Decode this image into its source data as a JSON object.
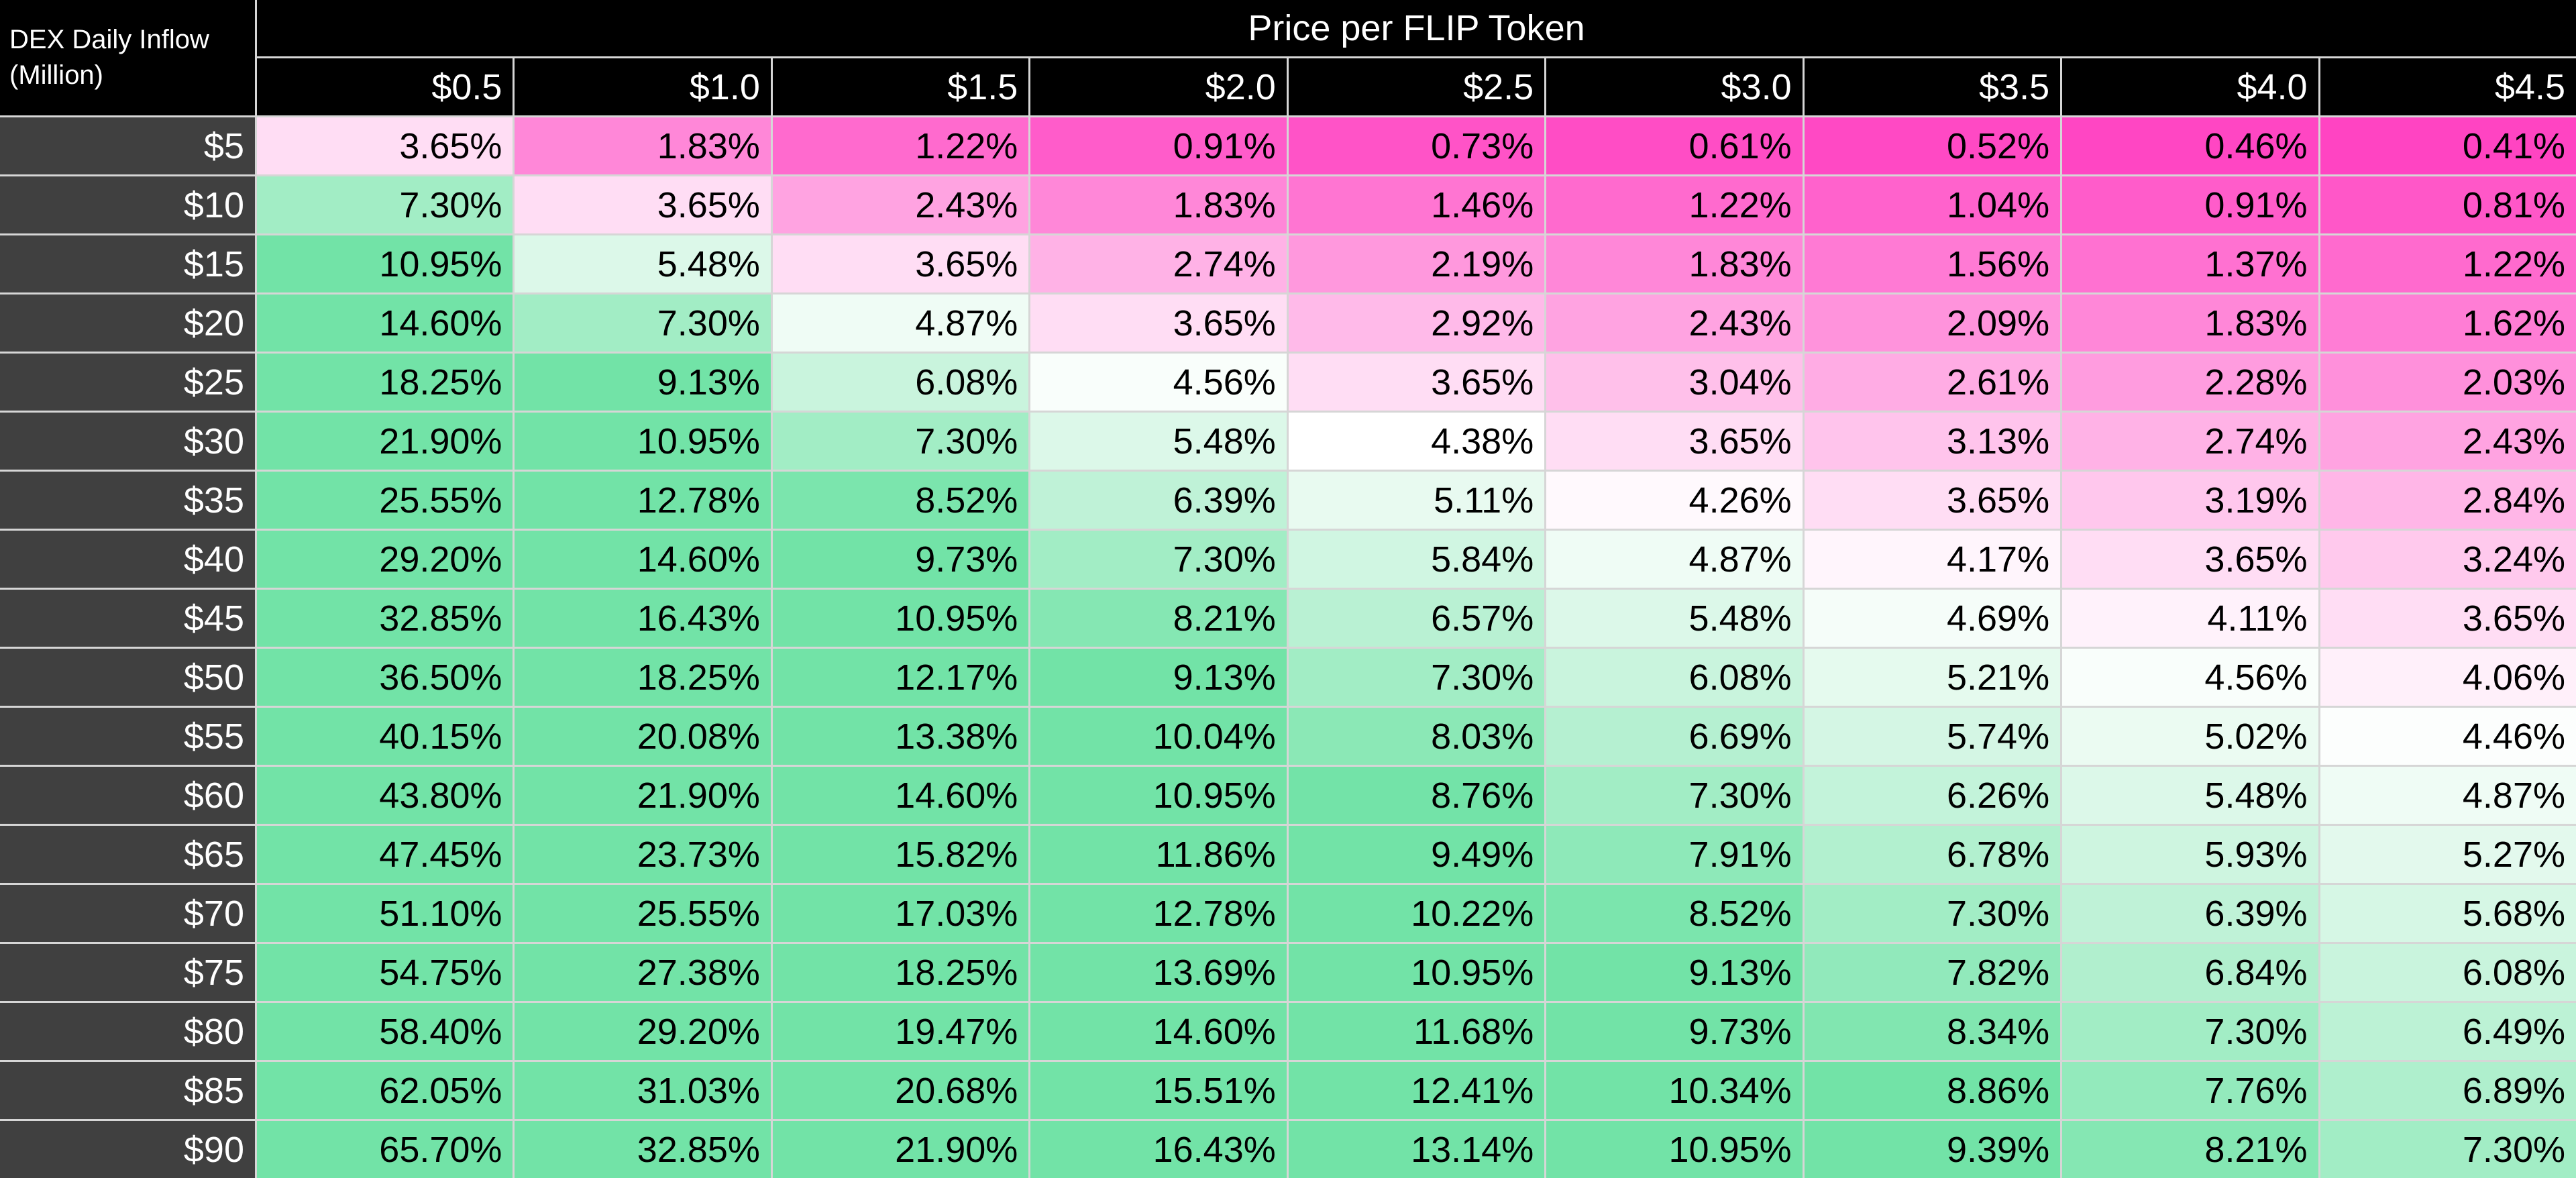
{
  "title": "Price per FLIP Token",
  "corner": {
    "line1": "DEX Daily Inflow",
    "line2": "(Million)"
  },
  "colors": {
    "min_pink": "#FF44C2",
    "mid_white": "#FFFFFF",
    "max_green": "#72E3A7",
    "grid": "#D6D6D6",
    "header_bg": "#000000",
    "row_header_bg": "#404040",
    "header_text": "#FFFFFF",
    "cell_text": "#000000"
  },
  "chart_data": {
    "type": "heatmap",
    "title": "Price per FLIP Token",
    "xlabel": "Price per FLIP Token",
    "ylabel": "DEX Daily Inflow (Million)",
    "legend_position": "none",
    "grid": true,
    "color_scale": {
      "pink_saturation_value": 0.41,
      "white_midpoint_value": 4.38,
      "green_saturation_value": 8.8
    },
    "columns": [
      "$0.5",
      "$1.0",
      "$1.5",
      "$2.0",
      "$2.5",
      "$3.0",
      "$3.5",
      "$4.0",
      "$4.5"
    ],
    "rows": [
      "$5",
      "$10",
      "$15",
      "$20",
      "$25",
      "$30",
      "$35",
      "$40",
      "$45",
      "$50",
      "$55",
      "$60",
      "$65",
      "$70",
      "$75",
      "$80",
      "$85",
      "$90"
    ],
    "values": [
      [
        "3.65%",
        "1.83%",
        "1.22%",
        "0.91%",
        "0.73%",
        "0.61%",
        "0.52%",
        "0.46%",
        "0.41%"
      ],
      [
        "7.30%",
        "3.65%",
        "2.43%",
        "1.83%",
        "1.46%",
        "1.22%",
        "1.04%",
        "0.91%",
        "0.81%"
      ],
      [
        "10.95%",
        "5.48%",
        "3.65%",
        "2.74%",
        "2.19%",
        "1.83%",
        "1.56%",
        "1.37%",
        "1.22%"
      ],
      [
        "14.60%",
        "7.30%",
        "4.87%",
        "3.65%",
        "2.92%",
        "2.43%",
        "2.09%",
        "1.83%",
        "1.62%"
      ],
      [
        "18.25%",
        "9.13%",
        "6.08%",
        "4.56%",
        "3.65%",
        "3.04%",
        "2.61%",
        "2.28%",
        "2.03%"
      ],
      [
        "21.90%",
        "10.95%",
        "7.30%",
        "5.48%",
        "4.38%",
        "3.65%",
        "3.13%",
        "2.74%",
        "2.43%"
      ],
      [
        "25.55%",
        "12.78%",
        "8.52%",
        "6.39%",
        "5.11%",
        "4.26%",
        "3.65%",
        "3.19%",
        "2.84%"
      ],
      [
        "29.20%",
        "14.60%",
        "9.73%",
        "7.30%",
        "5.84%",
        "4.87%",
        "4.17%",
        "3.65%",
        "3.24%"
      ],
      [
        "32.85%",
        "16.43%",
        "10.95%",
        "8.21%",
        "6.57%",
        "5.48%",
        "4.69%",
        "4.11%",
        "3.65%"
      ],
      [
        "36.50%",
        "18.25%",
        "12.17%",
        "9.13%",
        "7.30%",
        "6.08%",
        "5.21%",
        "4.56%",
        "4.06%"
      ],
      [
        "40.15%",
        "20.08%",
        "13.38%",
        "10.04%",
        "8.03%",
        "6.69%",
        "5.74%",
        "5.02%",
        "4.46%"
      ],
      [
        "43.80%",
        "21.90%",
        "14.60%",
        "10.95%",
        "8.76%",
        "7.30%",
        "6.26%",
        "5.48%",
        "4.87%"
      ],
      [
        "47.45%",
        "23.73%",
        "15.82%",
        "11.86%",
        "9.49%",
        "7.91%",
        "6.78%",
        "5.93%",
        "5.27%"
      ],
      [
        "51.10%",
        "25.55%",
        "17.03%",
        "12.78%",
        "10.22%",
        "8.52%",
        "7.30%",
        "6.39%",
        "5.68%"
      ],
      [
        "54.75%",
        "27.38%",
        "18.25%",
        "13.69%",
        "10.95%",
        "9.13%",
        "7.82%",
        "6.84%",
        "6.08%"
      ],
      [
        "58.40%",
        "29.20%",
        "19.47%",
        "14.60%",
        "11.68%",
        "9.73%",
        "8.34%",
        "7.30%",
        "6.49%"
      ],
      [
        "62.05%",
        "31.03%",
        "20.68%",
        "15.51%",
        "12.41%",
        "10.34%",
        "8.86%",
        "7.76%",
        "6.89%"
      ],
      [
        "65.70%",
        "32.85%",
        "21.90%",
        "16.43%",
        "13.14%",
        "10.95%",
        "9.39%",
        "8.21%",
        "7.30%"
      ]
    ]
  }
}
